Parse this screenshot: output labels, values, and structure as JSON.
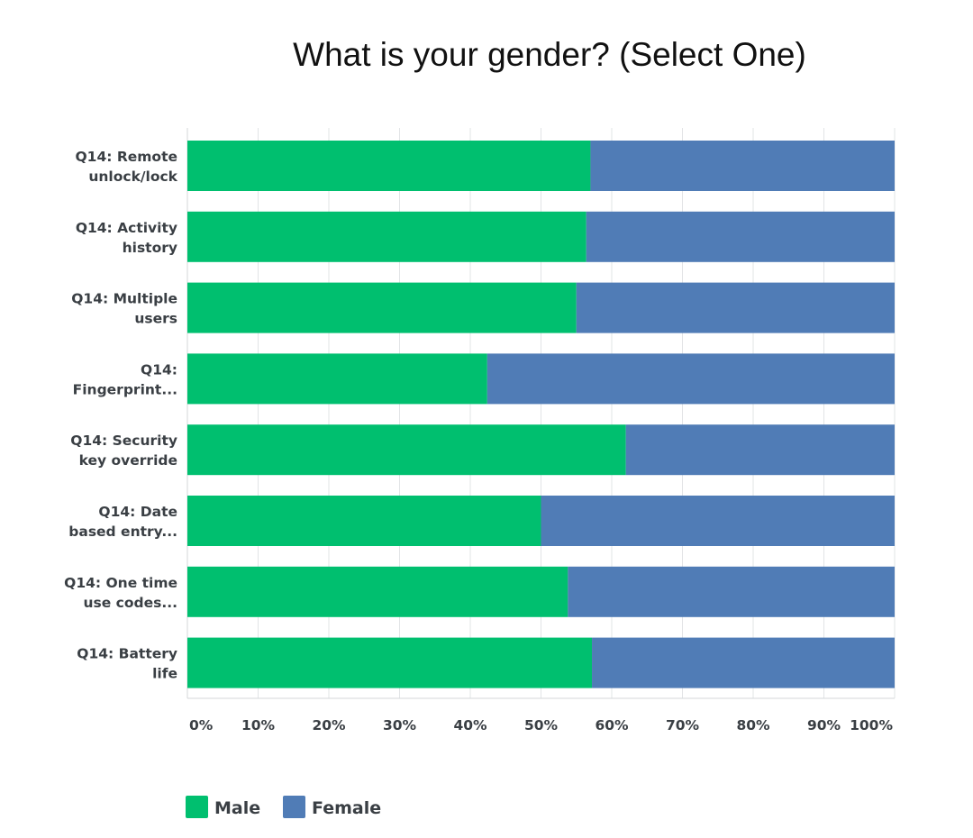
{
  "chart_data": {
    "type": "bar",
    "orientation": "horizontal",
    "stacked": true,
    "title": "What is your gender? (Select One)",
    "categories": [
      [
        "Q14: Remote",
        "unlock/lock"
      ],
      [
        "Q14: Activity",
        "history"
      ],
      [
        "Q14: Multiple",
        "users"
      ],
      [
        "Q14:",
        "Fingerprint..."
      ],
      [
        "Q14: Security",
        "key override"
      ],
      [
        "Q14: Date",
        "based entry..."
      ],
      [
        "Q14: One time",
        "use codes..."
      ],
      [
        "Q14: Battery",
        "life"
      ]
    ],
    "series": [
      {
        "name": "Male",
        "color": "#00bf6f",
        "values": [
          57,
          56.4,
          55,
          42.4,
          62,
          50,
          53.8,
          57.2
        ]
      },
      {
        "name": "Female",
        "color": "#507cb6",
        "values": [
          43,
          43.6,
          45,
          57.6,
          38,
          50,
          46.2,
          42.8
        ]
      }
    ],
    "xlim": [
      0,
      100
    ],
    "xticks": [
      0,
      10,
      20,
      30,
      40,
      50,
      60,
      70,
      80,
      90,
      100
    ],
    "xtick_labels": [
      "0%",
      "10%",
      "20%",
      "30%",
      "40%",
      "50%",
      "60%",
      "70%",
      "80%",
      "90%",
      "100%"
    ],
    "grid": true,
    "legend_position": "bottom-left"
  }
}
